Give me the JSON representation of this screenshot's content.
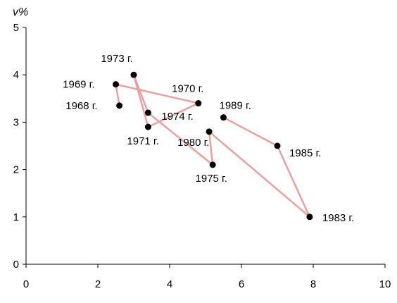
{
  "chart_data": {
    "type": "scatter",
    "connected": true,
    "ylabel": "v%",
    "xlabel": "",
    "xlim": [
      0,
      10
    ],
    "ylim": [
      0,
      5
    ],
    "x_ticks": [
      "0",
      "2",
      "4",
      "6",
      "8",
      "10"
    ],
    "y_ticks": [
      "0",
      "1",
      "2",
      "3",
      "4",
      "5"
    ],
    "grid": false,
    "line_color": "#e9a0a0",
    "marker_color": "#000000",
    "points": [
      {
        "label": "1968 г.",
        "x": 2.6,
        "y": 3.35
      },
      {
        "label": "1969 г.",
        "x": 2.5,
        "y": 3.8
      },
      {
        "label": "1970 г.",
        "x": 4.8,
        "y": 3.4
      },
      {
        "label": "1971 г.",
        "x": 3.4,
        "y": 2.9
      },
      {
        "label": "1973 г.",
        "x": 3.0,
        "y": 4.0
      },
      {
        "label": "1974 г.",
        "x": 3.4,
        "y": 3.2
      },
      {
        "label": "1975 г.",
        "x": 5.2,
        "y": 2.1
      },
      {
        "label": "1980 г.",
        "x": 5.1,
        "y": 2.8
      },
      {
        "label": "1983 г.",
        "x": 7.9,
        "y": 1.0
      },
      {
        "label": "1985 г.",
        "x": 7.0,
        "y": 2.5
      },
      {
        "label": "1989 г.",
        "x": 5.5,
        "y": 3.1
      }
    ]
  }
}
